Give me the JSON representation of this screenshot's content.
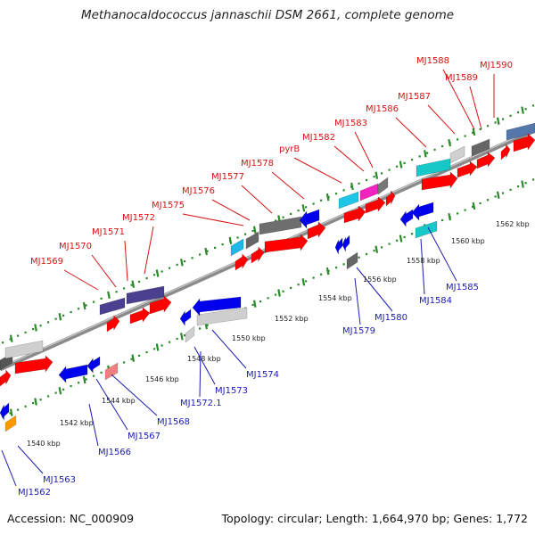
{
  "header": {
    "title": "Methanocaldococcus jannaschii DSM 2661, complete genome"
  },
  "footer": {
    "accession": "Accession: NC_000909",
    "summary": "Topology: circular; Length: 1,664,970 bp; Genes: 1,772"
  },
  "colors": {
    "top_label": "#d61313",
    "bottom_label": "#1b1bb5",
    "backbone": "#8a8a8a",
    "tick": "#2a8a2a",
    "forward_cds": "#ff0000",
    "reverse_cds": "#0000ee"
  },
  "scale": {
    "labels": [
      "1540 kbp",
      "1542 kbp",
      "1544 kbp",
      "1546 kbp",
      "1548 kbp",
      "1550 kbp",
      "1552 kbp",
      "1554 kbp",
      "1556 kbp",
      "1558 kbp",
      "1560 kbp",
      "1562 kbp"
    ]
  },
  "genes_top": [
    "MJ1569",
    "MJ1570",
    "MJ1571",
    "MJ1572",
    "MJ1575",
    "MJ1576",
    "MJ1577",
    "MJ1578",
    "pyrB",
    "MJ1582",
    "MJ1583",
    "MJ1586",
    "MJ1587",
    "MJ1588",
    "MJ1589",
    "MJ1590"
  ],
  "genes_bottom": [
    "MJ1562",
    "MJ1563",
    "MJ1566",
    "MJ1567",
    "MJ1568",
    "MJ1572.1",
    "MJ1573",
    "MJ1574",
    "MJ1579",
    "MJ1580",
    "MJ1584",
    "MJ1585"
  ]
}
